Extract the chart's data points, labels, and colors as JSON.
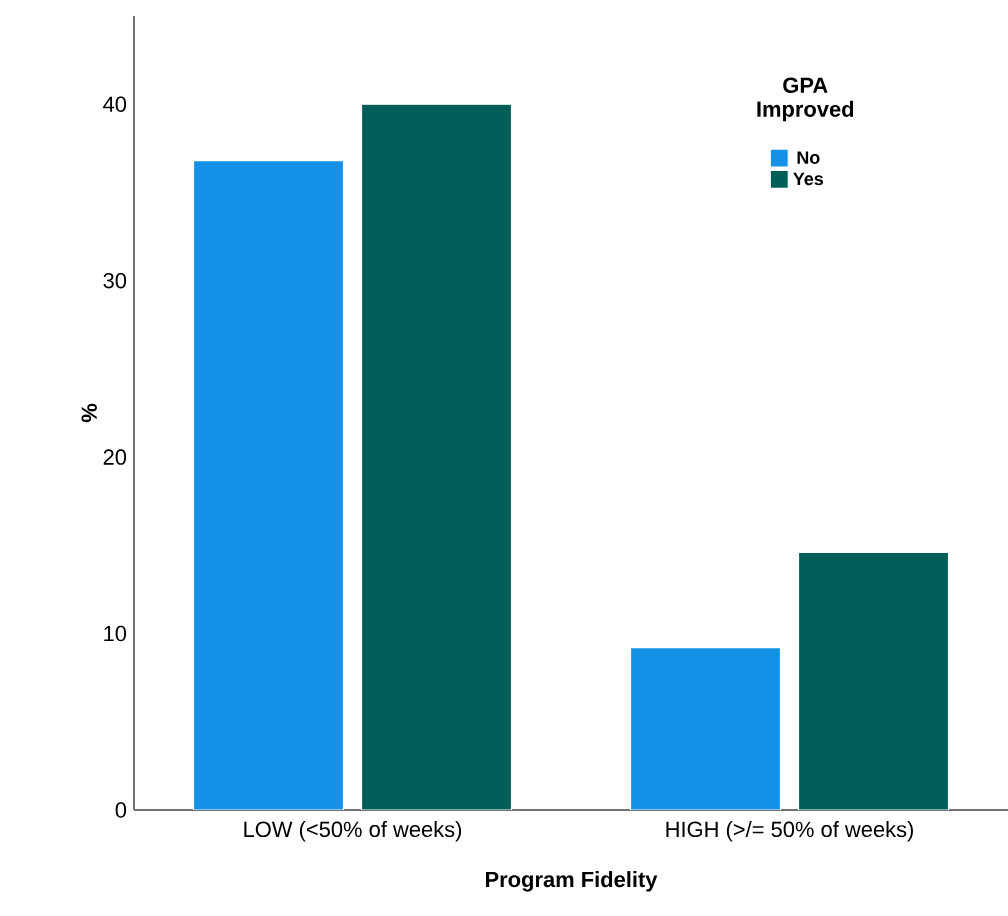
{
  "chart_data": {
    "type": "bar",
    "xlabel": "Program Fidelity",
    "ylabel": "%",
    "legend_title": "GPA Improved",
    "categories": [
      "LOW (<50% of weeks)",
      "HIGH (>/= 50% of weeks)"
    ],
    "series": [
      {
        "name": "No",
        "color": "#1490e6",
        "values": [
          36.8,
          9.2
        ]
      },
      {
        "name": "Yes",
        "color": "#005e58",
        "values": [
          40.0,
          14.6
        ]
      }
    ],
    "ylim": [
      0,
      45
    ],
    "yticks": [
      0,
      10,
      20,
      30,
      40
    ],
    "grid": false,
    "legend": "top right"
  }
}
